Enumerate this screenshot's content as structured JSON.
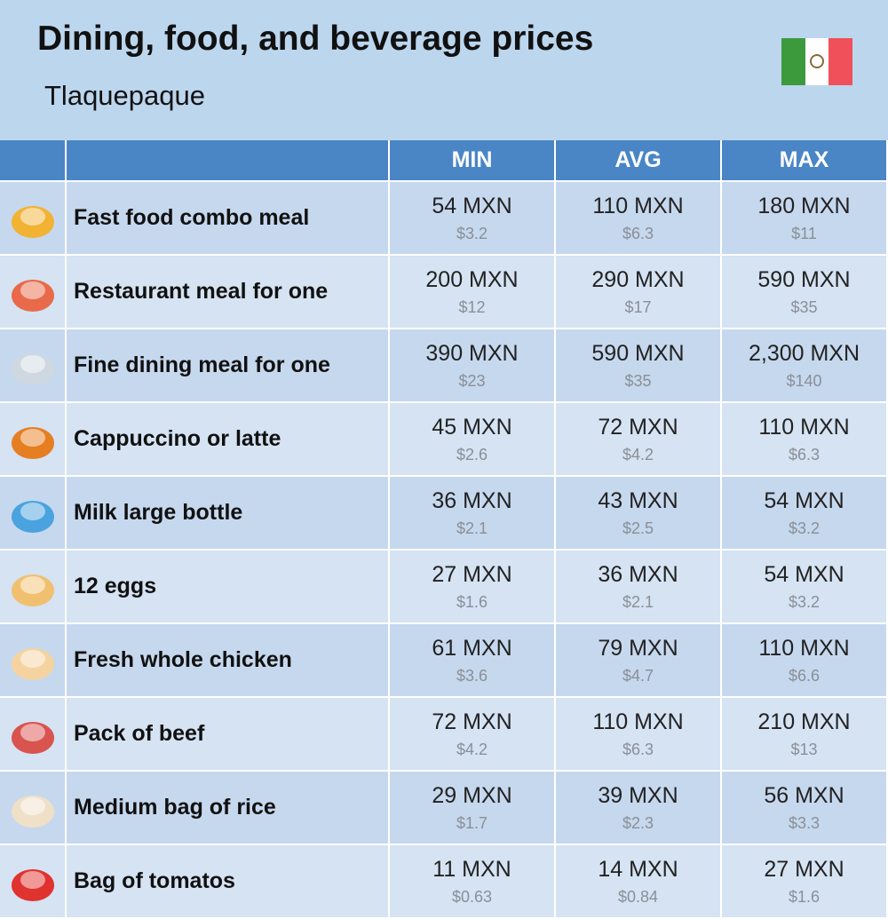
{
  "header": {
    "title": "Dining, food, and beverage prices",
    "subtitle": "Tlaquepaque"
  },
  "table": {
    "columns": [
      "MIN",
      "AVG",
      "MAX"
    ],
    "rows": [
      {
        "name": "Fast food combo meal",
        "cells": [
          {
            "local": "54 MXN",
            "usd": "$3.2"
          },
          {
            "local": "110 MXN",
            "usd": "$6.3"
          },
          {
            "local": "180 MXN",
            "usd": "$11"
          }
        ]
      },
      {
        "name": "Restaurant meal for one",
        "cells": [
          {
            "local": "200 MXN",
            "usd": "$12"
          },
          {
            "local": "290 MXN",
            "usd": "$17"
          },
          {
            "local": "590 MXN",
            "usd": "$35"
          }
        ]
      },
      {
        "name": "Fine dining meal for one",
        "cells": [
          {
            "local": "390 MXN",
            "usd": "$23"
          },
          {
            "local": "590 MXN",
            "usd": "$35"
          },
          {
            "local": "2,300 MXN",
            "usd": "$140"
          }
        ]
      },
      {
        "name": "Cappuccino or latte",
        "cells": [
          {
            "local": "45 MXN",
            "usd": "$2.6"
          },
          {
            "local": "72 MXN",
            "usd": "$4.2"
          },
          {
            "local": "110 MXN",
            "usd": "$6.3"
          }
        ]
      },
      {
        "name": "Milk large bottle",
        "cells": [
          {
            "local": "36 MXN",
            "usd": "$2.1"
          },
          {
            "local": "43 MXN",
            "usd": "$2.5"
          },
          {
            "local": "54 MXN",
            "usd": "$3.2"
          }
        ]
      },
      {
        "name": "12 eggs",
        "cells": [
          {
            "local": "27 MXN",
            "usd": "$1.6"
          },
          {
            "local": "36 MXN",
            "usd": "$2.1"
          },
          {
            "local": "54 MXN",
            "usd": "$3.2"
          }
        ]
      },
      {
        "name": "Fresh whole chicken",
        "cells": [
          {
            "local": "61 MXN",
            "usd": "$3.6"
          },
          {
            "local": "79 MXN",
            "usd": "$4.7"
          },
          {
            "local": "110 MXN",
            "usd": "$6.6"
          }
        ]
      },
      {
        "name": "Pack of beef",
        "cells": [
          {
            "local": "72 MXN",
            "usd": "$4.2"
          },
          {
            "local": "110 MXN",
            "usd": "$6.3"
          },
          {
            "local": "210 MXN",
            "usd": "$13"
          }
        ]
      },
      {
        "name": "Medium bag of rice",
        "cells": [
          {
            "local": "29 MXN",
            "usd": "$1.7"
          },
          {
            "local": "39 MXN",
            "usd": "$2.3"
          },
          {
            "local": "56 MXN",
            "usd": "$3.3"
          }
        ]
      },
      {
        "name": "Bag of tomatos",
        "cells": [
          {
            "local": "11 MXN",
            "usd": "$0.63"
          },
          {
            "local": "14 MXN",
            "usd": "$0.84"
          },
          {
            "local": "27 MXN",
            "usd": "$1.6"
          }
        ]
      }
    ]
  }
}
